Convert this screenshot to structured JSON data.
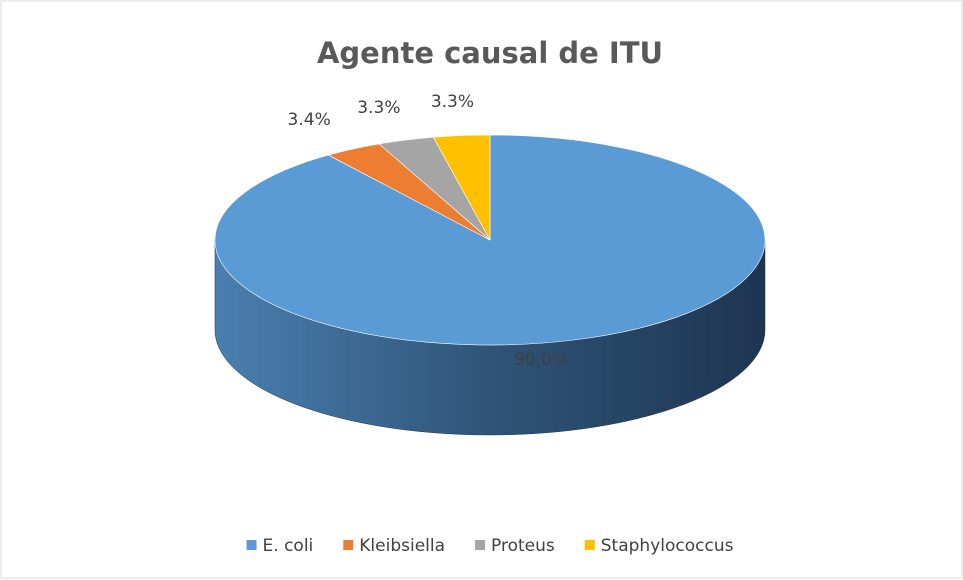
{
  "chart_data": {
    "type": "pie",
    "title": "Agente causal de ITU",
    "categories": [
      "E. coli",
      "Kleibsiella",
      "Proteus",
      "Staphylococcus"
    ],
    "values": [
      90.0,
      3.4,
      3.3,
      3.3
    ],
    "value_labels": [
      "90.0%",
      "3.4%",
      "3.3%",
      "3.3%"
    ],
    "colors": [
      "#5b9bd5",
      "#ed7d31",
      "#a5a5a5",
      "#ffc000"
    ],
    "legend": "bottom"
  }
}
